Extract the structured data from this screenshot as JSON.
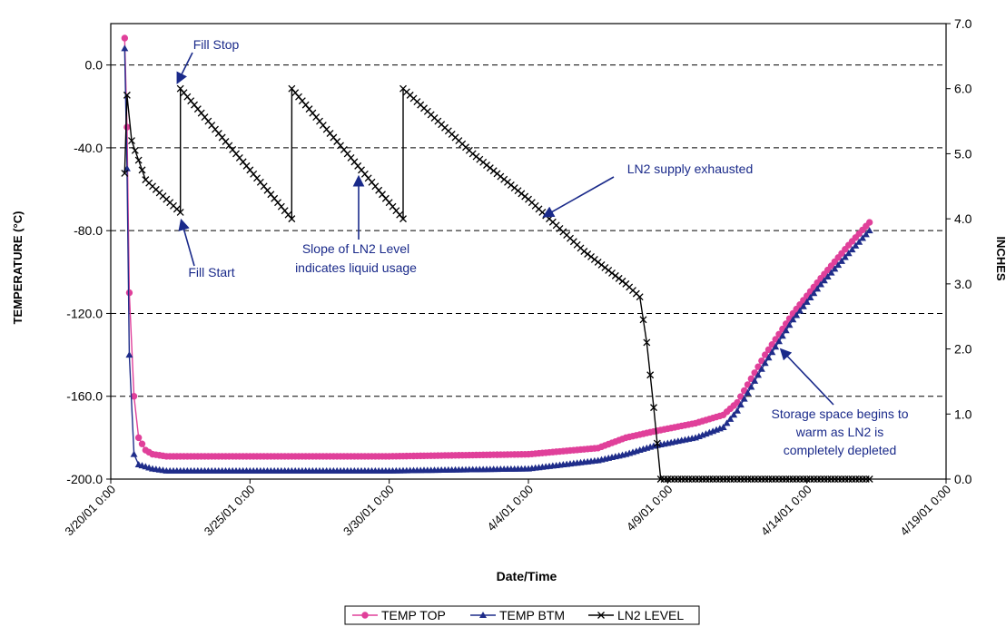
{
  "chart_data": {
    "type": "line",
    "xlabel": "Date/Time",
    "ylabel_left": "TEMPERATURE (°C)",
    "ylabel_right": "INCHES",
    "x_range": [
      "3/20/01 0:00",
      "4/19/01 0:00"
    ],
    "x_ticks": [
      "3/20/01 0:00",
      "3/25/01 0:00",
      "3/30/01 0:00",
      "4/4/01 0:00",
      "4/9/01 0:00",
      "4/14/01 0:00",
      "4/19/01 0:00"
    ],
    "y_left_range": [
      -200,
      20
    ],
    "y_left_ticks": [
      "0.0",
      "-40.0",
      "-80.0",
      "-120.0",
      "-160.0",
      "-200.0"
    ],
    "y_right_range": [
      0,
      7
    ],
    "y_right_ticks": [
      "0.0",
      "1.0",
      "2.0",
      "3.0",
      "4.0",
      "5.0",
      "6.0",
      "7.0"
    ],
    "grid": "horizontal dashed",
    "legend_position": "bottom",
    "series": [
      {
        "name": "TEMP TOP",
        "axis": "left",
        "color": "#e0409a",
        "marker": "diamond",
        "points": [
          [
            "3/20/01 12:00",
            13
          ],
          [
            "3/20/01 14:00",
            -30
          ],
          [
            "3/20/01 16:00",
            -110
          ],
          [
            "3/20/01 20:00",
            -160
          ],
          [
            "3/21/01 0:00",
            -180
          ],
          [
            "3/21/01 6:00",
            -186
          ],
          [
            "3/21/01 12:00",
            -188
          ],
          [
            "3/22/01 0:00",
            -189
          ],
          [
            "3/25/01 0:00",
            -189
          ],
          [
            "3/30/01 0:00",
            -189
          ],
          [
            "4/4/01 0:00",
            -188
          ],
          [
            "4/6/01 12:00",
            -185
          ],
          [
            "4/7/01 12:00",
            -180
          ],
          [
            "4/8/01 12:00",
            -177
          ],
          [
            "4/10/01 0:00",
            -173
          ],
          [
            "4/11/01 0:00",
            -169
          ],
          [
            "4/11/01 12:00",
            -163
          ],
          [
            "4/12/01 12:00",
            -140
          ],
          [
            "4/13/01 12:00",
            -120
          ],
          [
            "4/14/01 12:00",
            -103
          ],
          [
            "4/15/01 12:00",
            -87
          ],
          [
            "4/16/01 6:00",
            -76
          ]
        ]
      },
      {
        "name": "TEMP BTM",
        "axis": "left",
        "color": "#1f2d8a",
        "marker": "triangle",
        "points": [
          [
            "3/20/01 12:00",
            8
          ],
          [
            "3/20/01 14:00",
            -50
          ],
          [
            "3/20/01 16:00",
            -140
          ],
          [
            "3/20/01 20:00",
            -188
          ],
          [
            "3/21/01 0:00",
            -193
          ],
          [
            "3/21/01 12:00",
            -195
          ],
          [
            "3/22/01 0:00",
            -196
          ],
          [
            "3/25/01 0:00",
            -196
          ],
          [
            "3/30/01 0:00",
            -196
          ],
          [
            "4/4/01 0:00",
            -195
          ],
          [
            "4/6/01 12:00",
            -191
          ],
          [
            "4/7/01 12:00",
            -188
          ],
          [
            "4/8/01 12:00",
            -184
          ],
          [
            "4/10/01 0:00",
            -180
          ],
          [
            "4/11/01 0:00",
            -175
          ],
          [
            "4/11/01 12:00",
            -167
          ],
          [
            "4/12/01 12:00",
            -144
          ],
          [
            "4/13/01 12:00",
            -123
          ],
          [
            "4/14/01 12:00",
            -106
          ],
          [
            "4/15/01 12:00",
            -91
          ],
          [
            "4/16/01 6:00",
            -80
          ]
        ]
      },
      {
        "name": "LN2 LEVEL",
        "axis": "right",
        "color": "#000000",
        "marker": "x",
        "points": [
          [
            "3/20/01 12:00",
            4.7
          ],
          [
            "3/20/01 14:00",
            5.9
          ],
          [
            "3/20/01 18:00",
            5.2
          ],
          [
            "3/21/01 6:00",
            4.6
          ],
          [
            "3/22/01 0:00",
            4.3
          ],
          [
            "3/22/01 12:00",
            4.1
          ],
          [
            "3/22/01 12:01",
            6.0
          ],
          [
            "3/26/01 12:00",
            4.0
          ],
          [
            "3/26/01 12:01",
            6.0
          ],
          [
            "3/30/01 12:00",
            4.0
          ],
          [
            "3/30/01 12:01",
            6.0
          ],
          [
            "4/2/01 0:00",
            5.0
          ],
          [
            "4/4/01 0:00",
            4.3
          ],
          [
            "4/6/01 0:00",
            3.5
          ],
          [
            "4/7/01 12:00",
            3.0
          ],
          [
            "4/8/01 0:00",
            2.8
          ],
          [
            "4/8/01 6:00",
            2.1
          ],
          [
            "4/8/01 12:00",
            1.1
          ],
          [
            "4/8/01 18:00",
            0
          ],
          [
            "4/12/01 0:00",
            0
          ],
          [
            "4/16/01 6:00",
            0
          ]
        ]
      }
    ],
    "annotations": [
      {
        "text": "Fill Stop",
        "id": "fill-stop"
      },
      {
        "text": "Fill Start",
        "id": "fill-start"
      },
      {
        "text": "Slope of LN2 Level",
        "id": "slope-line1"
      },
      {
        "text": "indicates liquid usage",
        "id": "slope-line2"
      },
      {
        "text": "LN2 supply exhausted",
        "id": "exhausted"
      },
      {
        "text": "Storage space begins to",
        "id": "warm-line1"
      },
      {
        "text": "warm as LN2 is",
        "id": "warm-line2"
      },
      {
        "text": "completely depleted",
        "id": "warm-line3"
      }
    ],
    "colors": {
      "annotation": "#1a2a8a",
      "grid": "#000000"
    }
  }
}
